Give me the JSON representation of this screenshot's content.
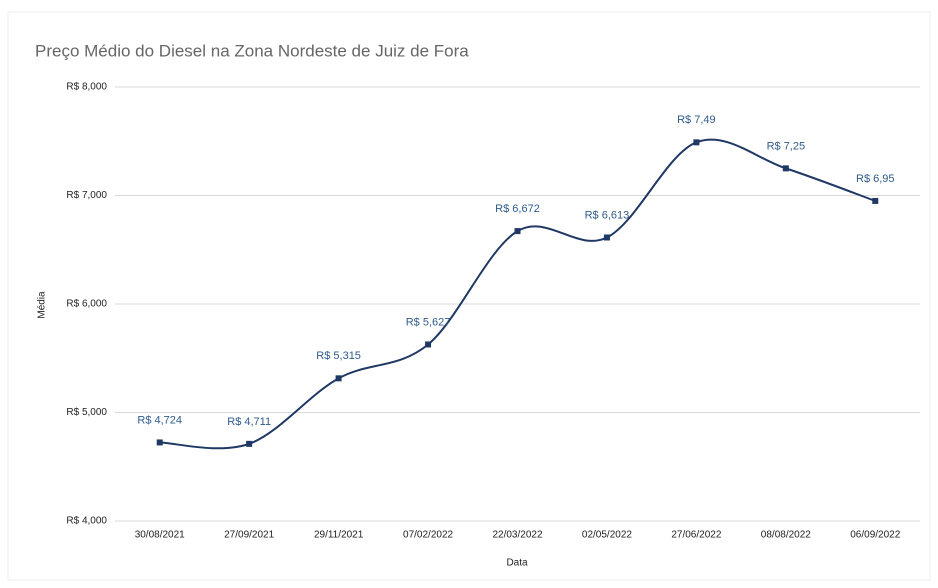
{
  "chart_data": {
    "type": "line",
    "title": "Preço Médio do Diesel na Zona Nordeste de Juiz de Fora",
    "x_label": "Data",
    "y_label": "Média",
    "categories": [
      "30/08/2021",
      "27/09/2021",
      "29/11/2021",
      "07/02/2022",
      "22/03/2022",
      "02/05/2022",
      "27/06/2022",
      "08/08/2022",
      "06/09/2022"
    ],
    "series": [
      {
        "name": "Média",
        "color": "#1f3864",
        "values": [
          4.724,
          4.711,
          5.315,
          5.627,
          6.672,
          6.613,
          7.49,
          7.25,
          6.95
        ],
        "value_labels": [
          "R$ 4,724",
          "R$ 4,711",
          "R$ 5,315",
          "R$ 5,627",
          "R$ 6,672",
          "R$ 6,613",
          "R$ 7,49",
          "R$ 7,25",
          "R$ 6,95"
        ]
      }
    ],
    "ylim": [
      4,
      8
    ],
    "yticks": [
      {
        "value": 4,
        "label": "R$ 4,000"
      },
      {
        "value": 5,
        "label": "R$ 5,000"
      },
      {
        "value": 6,
        "label": "R$ 6,000"
      },
      {
        "value": 7,
        "label": "R$ 7,000"
      },
      {
        "value": 8,
        "label": "R$ 8,000"
      }
    ],
    "grid": true,
    "smooth": true
  }
}
